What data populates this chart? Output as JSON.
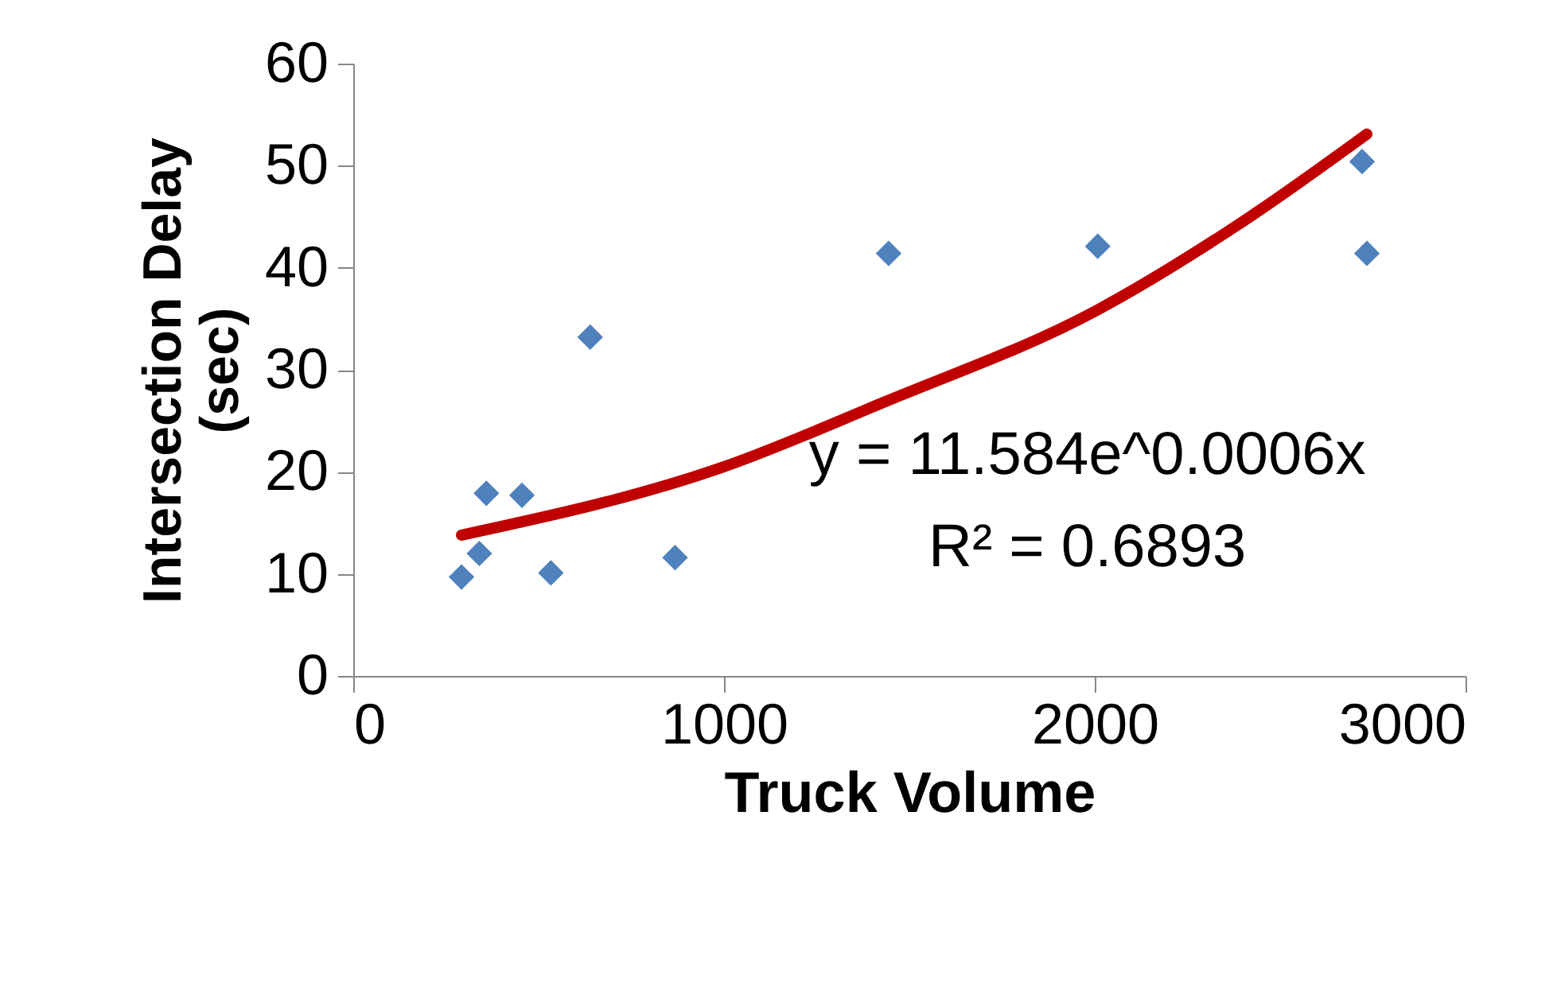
{
  "chart_data": {
    "type": "scatter",
    "xlabel": "Truck Volume",
    "ylabel": "Intersection Delay (sec)",
    "xlim": [
      0,
      3000
    ],
    "xticks": [
      0,
      1000,
      2000,
      3000
    ],
    "ylim": [
      0,
      60
    ],
    "yticks": [
      0,
      10,
      20,
      30,
      40,
      50,
      60
    ],
    "grid": false,
    "marker": "diamond",
    "series": [
      {
        "color": "#4f81bd",
        "x": [
          292,
          340,
          359,
          455,
          533,
          639,
          868,
          1444,
          2008,
          2721,
          2734
        ],
        "values": [
          9.7,
          12.0,
          17.9,
          17.7,
          10.1,
          33.2,
          11.6,
          41.4,
          42.1,
          50.4,
          41.4
        ]
      },
      {
        "type": "line",
        "color": "#c00000",
        "marker": "none",
        "x": [
          292,
          1000,
          1430,
          2004,
          2386,
          2734
        ],
        "values": [
          13.8,
          20.5,
          26.8,
          35.8,
          44.2,
          53.1
        ]
      }
    ],
    "annotations": [
      "y = 11.584e^0.0006x",
      "R² = 0.6893"
    ]
  }
}
